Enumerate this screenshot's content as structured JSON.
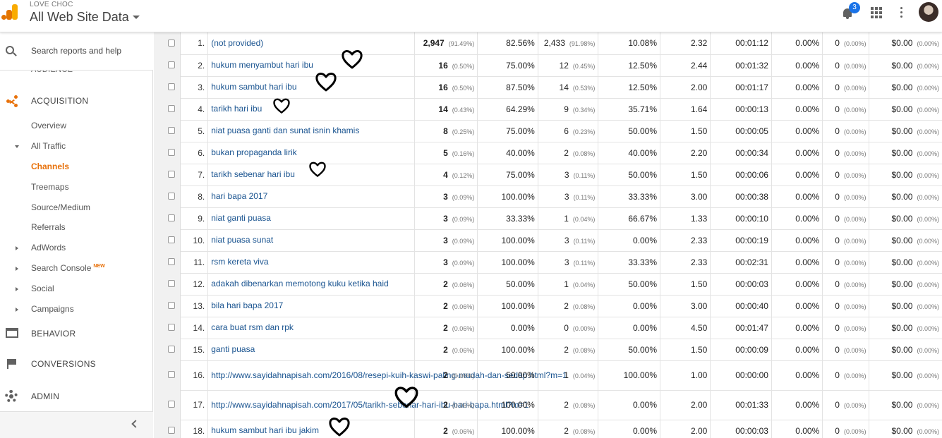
{
  "header": {
    "account_name": "LOVE CHOC",
    "property_name": "All Web Site Data",
    "notification_count": "3"
  },
  "sidebar": {
    "search_placeholder": "Search reports and help",
    "audience_label": "AUDIENCE",
    "acquisition_label": "ACQUISITION",
    "items": {
      "overview": "Overview",
      "all_traffic": "All Traffic",
      "channels": "Channels",
      "treemaps": "Treemaps",
      "source_medium": "Source/Medium",
      "referrals": "Referrals",
      "adwords": "AdWords",
      "search_console": "Search Console",
      "search_console_badge": "NEW",
      "social": "Social",
      "campaigns": "Campaigns"
    },
    "behavior_label": "BEHAVIOR",
    "conversions_label": "CONVERSIONS",
    "admin_label": "ADMIN"
  },
  "rows": [
    {
      "idx": "1.",
      "keyword": "(not provided)",
      "sessions": "2,947",
      "sessions_pct": "(91.49%)",
      "new_sessions": "82.56%",
      "new_users": "2,433",
      "new_users_pct": "(91.98%)",
      "bounce": "10.08%",
      "pages": "2.32",
      "duration": "00:01:12",
      "conv_rate": "0.00%",
      "goal_comp": "0",
      "goal_comp_pct": "(0.00%)",
      "goal_value": "$0.00",
      "goal_value_pct": "(0.00%)"
    },
    {
      "idx": "2.",
      "keyword": "hukum menyambut hari ibu",
      "sessions": "16",
      "sessions_pct": "(0.50%)",
      "new_sessions": "75.00%",
      "new_users": "12",
      "new_users_pct": "(0.45%)",
      "bounce": "12.50%",
      "pages": "2.44",
      "duration": "00:01:32",
      "conv_rate": "0.00%",
      "goal_comp": "0",
      "goal_comp_pct": "(0.00%)",
      "goal_value": "$0.00",
      "goal_value_pct": "(0.00%)"
    },
    {
      "idx": "3.",
      "keyword": "hukum sambut hari ibu",
      "sessions": "16",
      "sessions_pct": "(0.50%)",
      "new_sessions": "87.50%",
      "new_users": "14",
      "new_users_pct": "(0.53%)",
      "bounce": "12.50%",
      "pages": "2.00",
      "duration": "00:01:17",
      "conv_rate": "0.00%",
      "goal_comp": "0",
      "goal_comp_pct": "(0.00%)",
      "goal_value": "$0.00",
      "goal_value_pct": "(0.00%)"
    },
    {
      "idx": "4.",
      "keyword": "tarikh hari ibu",
      "sessions": "14",
      "sessions_pct": "(0.43%)",
      "new_sessions": "64.29%",
      "new_users": "9",
      "new_users_pct": "(0.34%)",
      "bounce": "35.71%",
      "pages": "1.64",
      "duration": "00:00:13",
      "conv_rate": "0.00%",
      "goal_comp": "0",
      "goal_comp_pct": "(0.00%)",
      "goal_value": "$0.00",
      "goal_value_pct": "(0.00%)"
    },
    {
      "idx": "5.",
      "keyword": "niat puasa ganti dan sunat isnin khamis",
      "sessions": "8",
      "sessions_pct": "(0.25%)",
      "new_sessions": "75.00%",
      "new_users": "6",
      "new_users_pct": "(0.23%)",
      "bounce": "50.00%",
      "pages": "1.50",
      "duration": "00:00:05",
      "conv_rate": "0.00%",
      "goal_comp": "0",
      "goal_comp_pct": "(0.00%)",
      "goal_value": "$0.00",
      "goal_value_pct": "(0.00%)"
    },
    {
      "idx": "6.",
      "keyword": "bukan propaganda lirik",
      "sessions": "5",
      "sessions_pct": "(0.16%)",
      "new_sessions": "40.00%",
      "new_users": "2",
      "new_users_pct": "(0.08%)",
      "bounce": "40.00%",
      "pages": "2.20",
      "duration": "00:00:34",
      "conv_rate": "0.00%",
      "goal_comp": "0",
      "goal_comp_pct": "(0.00%)",
      "goal_value": "$0.00",
      "goal_value_pct": "(0.00%)"
    },
    {
      "idx": "7.",
      "keyword": "tarikh sebenar hari ibu",
      "sessions": "4",
      "sessions_pct": "(0.12%)",
      "new_sessions": "75.00%",
      "new_users": "3",
      "new_users_pct": "(0.11%)",
      "bounce": "50.00%",
      "pages": "1.50",
      "duration": "00:00:06",
      "conv_rate": "0.00%",
      "goal_comp": "0",
      "goal_comp_pct": "(0.00%)",
      "goal_value": "$0.00",
      "goal_value_pct": "(0.00%)"
    },
    {
      "idx": "8.",
      "keyword": "hari bapa 2017",
      "sessions": "3",
      "sessions_pct": "(0.09%)",
      "new_sessions": "100.00%",
      "new_users": "3",
      "new_users_pct": "(0.11%)",
      "bounce": "33.33%",
      "pages": "3.00",
      "duration": "00:00:38",
      "conv_rate": "0.00%",
      "goal_comp": "0",
      "goal_comp_pct": "(0.00%)",
      "goal_value": "$0.00",
      "goal_value_pct": "(0.00%)"
    },
    {
      "idx": "9.",
      "keyword": "niat ganti puasa",
      "sessions": "3",
      "sessions_pct": "(0.09%)",
      "new_sessions": "33.33%",
      "new_users": "1",
      "new_users_pct": "(0.04%)",
      "bounce": "66.67%",
      "pages": "1.33",
      "duration": "00:00:10",
      "conv_rate": "0.00%",
      "goal_comp": "0",
      "goal_comp_pct": "(0.00%)",
      "goal_value": "$0.00",
      "goal_value_pct": "(0.00%)"
    },
    {
      "idx": "10.",
      "keyword": "niat puasa sunat",
      "sessions": "3",
      "sessions_pct": "(0.09%)",
      "new_sessions": "100.00%",
      "new_users": "3",
      "new_users_pct": "(0.11%)",
      "bounce": "0.00%",
      "pages": "2.33",
      "duration": "00:00:19",
      "conv_rate": "0.00%",
      "goal_comp": "0",
      "goal_comp_pct": "(0.00%)",
      "goal_value": "$0.00",
      "goal_value_pct": "(0.00%)"
    },
    {
      "idx": "11.",
      "keyword": "rsm kereta viva",
      "sessions": "3",
      "sessions_pct": "(0.09%)",
      "new_sessions": "100.00%",
      "new_users": "3",
      "new_users_pct": "(0.11%)",
      "bounce": "33.33%",
      "pages": "2.33",
      "duration": "00:02:31",
      "conv_rate": "0.00%",
      "goal_comp": "0",
      "goal_comp_pct": "(0.00%)",
      "goal_value": "$0.00",
      "goal_value_pct": "(0.00%)"
    },
    {
      "idx": "12.",
      "keyword": "adakah dibenarkan memotong kuku ketika haid",
      "sessions": "2",
      "sessions_pct": "(0.06%)",
      "new_sessions": "50.00%",
      "new_users": "1",
      "new_users_pct": "(0.04%)",
      "bounce": "50.00%",
      "pages": "1.50",
      "duration": "00:00:03",
      "conv_rate": "0.00%",
      "goal_comp": "0",
      "goal_comp_pct": "(0.00%)",
      "goal_value": "$0.00",
      "goal_value_pct": "(0.00%)"
    },
    {
      "idx": "13.",
      "keyword": "bila hari bapa 2017",
      "sessions": "2",
      "sessions_pct": "(0.06%)",
      "new_sessions": "100.00%",
      "new_users": "2",
      "new_users_pct": "(0.08%)",
      "bounce": "0.00%",
      "pages": "3.00",
      "duration": "00:00:40",
      "conv_rate": "0.00%",
      "goal_comp": "0",
      "goal_comp_pct": "(0.00%)",
      "goal_value": "$0.00",
      "goal_value_pct": "(0.00%)"
    },
    {
      "idx": "14.",
      "keyword": "cara buat rsm dan rpk",
      "sessions": "2",
      "sessions_pct": "(0.06%)",
      "new_sessions": "0.00%",
      "new_users": "0",
      "new_users_pct": "(0.00%)",
      "bounce": "0.00%",
      "pages": "4.50",
      "duration": "00:01:47",
      "conv_rate": "0.00%",
      "goal_comp": "0",
      "goal_comp_pct": "(0.00%)",
      "goal_value": "$0.00",
      "goal_value_pct": "(0.00%)"
    },
    {
      "idx": "15.",
      "keyword": "ganti puasa",
      "sessions": "2",
      "sessions_pct": "(0.06%)",
      "new_sessions": "100.00%",
      "new_users": "2",
      "new_users_pct": "(0.08%)",
      "bounce": "50.00%",
      "pages": "1.50",
      "duration": "00:00:09",
      "conv_rate": "0.00%",
      "goal_comp": "0",
      "goal_comp_pct": "(0.00%)",
      "goal_value": "$0.00",
      "goal_value_pct": "(0.00%)"
    },
    {
      "idx": "16.",
      "keyword": "http://www.sayidahnapisah.com/2016/08/resepi-kuih-kaswi-paling-mudah-dan-sedap.html?m=1",
      "sessions": "2",
      "sessions_pct": "(0.06%)",
      "new_sessions": "50.00%",
      "new_users": "1",
      "new_users_pct": "(0.04%)",
      "bounce": "100.00%",
      "pages": "1.00",
      "duration": "00:00:00",
      "conv_rate": "0.00%",
      "goal_comp": "0",
      "goal_comp_pct": "(0.00%)",
      "goal_value": "$0.00",
      "goal_value_pct": "(0.00%)"
    },
    {
      "idx": "17.",
      "keyword": "http://www.sayidahnapisah.com/2017/05/tarikh-sebenar-hari-ibu-hari-bapa.html?m=1",
      "sessions": "2",
      "sessions_pct": "(0.06%)",
      "new_sessions": "100.00%",
      "new_users": "2",
      "new_users_pct": "(0.08%)",
      "bounce": "0.00%",
      "pages": "2.00",
      "duration": "00:01:33",
      "conv_rate": "0.00%",
      "goal_comp": "0",
      "goal_comp_pct": "(0.00%)",
      "goal_value": "$0.00",
      "goal_value_pct": "(0.00%)"
    },
    {
      "idx": "18.",
      "keyword": "hukum sambut hari ibu jakim",
      "sessions": "2",
      "sessions_pct": "(0.06%)",
      "new_sessions": "100.00%",
      "new_users": "2",
      "new_users_pct": "(0.08%)",
      "bounce": "0.00%",
      "pages": "2.00",
      "duration": "00:00:03",
      "conv_rate": "0.00%",
      "goal_comp": "0",
      "goal_comp_pct": "(0.00%)",
      "goal_value": "$0.00",
      "goal_value_pct": "(0.00%)"
    }
  ],
  "annotations": {
    "heart_color": "#000000",
    "heart_rows": [
      "2.",
      "3.",
      "4.",
      "7.",
      "17.",
      "18."
    ]
  }
}
